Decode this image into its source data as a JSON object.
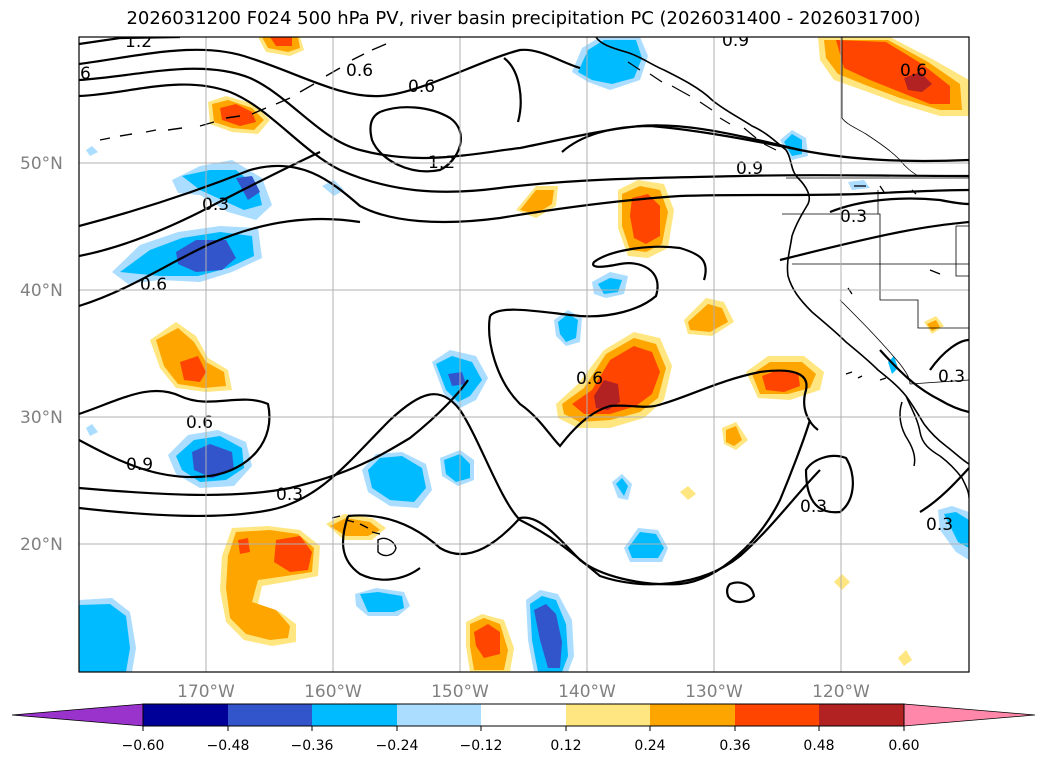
{
  "title": "2026031200 F024 500 hPa PV, river basin precipitation PC (2026031400 - 2026031700)",
  "lat_labels": [
    "50°N",
    "40°N",
    "30°N",
    "20°N"
  ],
  "lon_labels": [
    "170°W",
    "160°W",
    "150°W",
    "140°W",
    "130°W",
    "120°W"
  ],
  "colorbar": {
    "ticks": [
      "−0.60",
      "−0.48",
      "−0.36",
      "−0.24",
      "−0.12",
      "0.12",
      "0.24",
      "0.36",
      "0.48",
      "0.60"
    ],
    "colors": [
      "#9933cc",
      "#000099",
      "#3355cc",
      "#00bbff",
      "#aaddff",
      "#ffffff",
      "#ffe680",
      "#ffa500",
      "#ff4500",
      "#b22222",
      "#ff88aa"
    ]
  },
  "contour_labels": [
    "1.2",
    "6",
    "0.6",
    "0.6",
    "1.2",
    "0.3",
    "0.6",
    "0.6",
    "0.9",
    "0.3",
    "0.6",
    "0.3",
    "0.3",
    "0.3",
    "0.9",
    "0.9",
    "0.6",
    "0.3"
  ],
  "colors": {
    "border": "#000000",
    "grid": "#b0b0b0",
    "neg_light": "#aaddff",
    "neg_mid": "#00bbff",
    "neg_dark": "#3355cc",
    "pos_light": "#ffe680",
    "pos_mid": "#ffa500",
    "pos_dark": "#ff4500",
    "pos_max": "#b22222"
  }
}
